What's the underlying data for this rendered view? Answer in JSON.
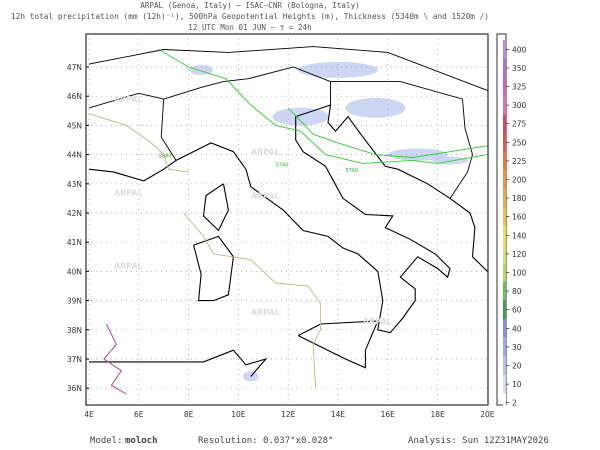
{
  "header": {
    "line1": "ARPAL (Genoa, Italy)  –  ISAC–CNR (Bologna, Italy)",
    "line2": "12h total precipitation (mm (12h)⁻¹), 500hPa Geopotential Heights (m), Thickness (5340m \\ and 1520m /)",
    "line3": "12 UTC Mon 01 JUN  –  τ = 24h"
  },
  "map": {
    "lat_labels": [
      "47N",
      "46N",
      "45N",
      "44N",
      "43N",
      "42N",
      "41N",
      "40N",
      "39N",
      "38N",
      "37N",
      "36N"
    ],
    "lon_labels": [
      "4E",
      "6E",
      "8E",
      "10E",
      "12E",
      "14E",
      "16E",
      "18E",
      "20E"
    ],
    "contour_labels": [
      "5760",
      "5760",
      "5880"
    ],
    "watermark": "ARPAL"
  },
  "colorbar": {
    "labels": [
      "400",
      "350",
      "325",
      "300",
      "275",
      "250",
      "225",
      "200",
      "180",
      "160",
      "140",
      "120",
      "100",
      "80",
      "60",
      "40",
      "30",
      "20",
      "10",
      "2"
    ]
  },
  "footer": {
    "model_label": "Model:",
    "model": "moloch",
    "resolution": "Resolution: 0.037°x0.028°",
    "analysis": "Analysis: Sun 12Z31MAY2026"
  }
}
